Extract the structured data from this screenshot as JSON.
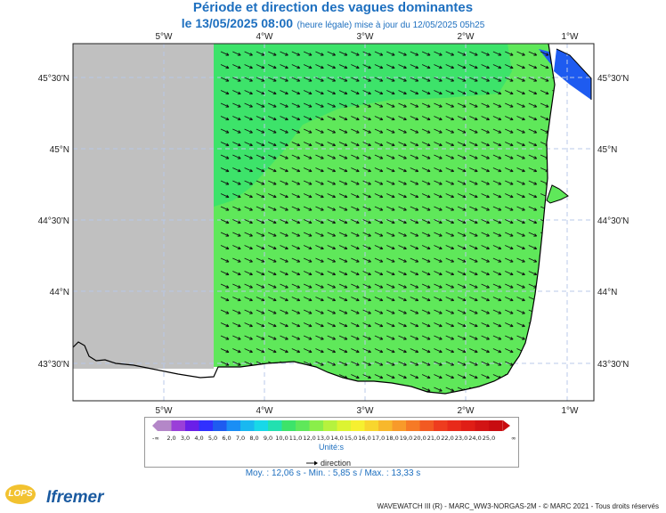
{
  "header": {
    "title": "Période et direction des vagues dominantes",
    "date_text": "le 13/05/2025 08:00",
    "note_text": "(heure légale) mise à jour du 12/05/2025 05h25"
  },
  "map": {
    "lon_labels": [
      "5°W",
      "4°W",
      "3°W",
      "2°W",
      "1°W"
    ],
    "lat_labels": [
      "45°30'N",
      "45°N",
      "44°30'N",
      "44°N",
      "43°30'N"
    ],
    "colors": {
      "land": "#ffffff",
      "nodata": "#c0c0c0",
      "sea_main": "#5fe85a",
      "sea_dark": "#3de36a",
      "sea_blue": "#1e5bf0",
      "arrow": "#111111",
      "coast": "#000000"
    }
  },
  "legend": {
    "min_symbol": "-∞",
    "max_symbol": "∞",
    "labels": [
      "2,0",
      "3,0",
      "4,0",
      "5,0",
      "6,0",
      "7,0",
      "8,0",
      "9,0",
      "10,0",
      "11,0",
      "12,0",
      "13,0",
      "14,0",
      "15,0",
      "16,0",
      "17,0",
      "18,0",
      "19,0",
      "20,0",
      "21,0",
      "22,0",
      "23,0",
      "24,0",
      "25,0"
    ],
    "colors": [
      "#b487c8",
      "#9a3fd8",
      "#6a1fe8",
      "#3030ff",
      "#1e5bf0",
      "#1a8ef5",
      "#19b8f0",
      "#18d8e8",
      "#22e0b0",
      "#3de36a",
      "#5fe85a",
      "#8aee4a",
      "#b6f23e",
      "#dcf432",
      "#f6f030",
      "#f8d62e",
      "#f8b82c",
      "#f89a2a",
      "#f67a26",
      "#f25a22",
      "#ee3c1e",
      "#e82a1a",
      "#e01e16",
      "#d21414",
      "#c80c10"
    ],
    "unit": "Unité:s",
    "direction": "direction"
  },
  "stats": "Moy. : 12,06 s   -   Min. : 5,85 s / Max. : 13,33 s",
  "credit": "WAVEWATCH III (R) - MARC_WW3-NORGAS-2M - © MARC 2021 - Tous droits réservés",
  "logos": {
    "lops": "LOPS",
    "ifremer": "Ifremer"
  }
}
